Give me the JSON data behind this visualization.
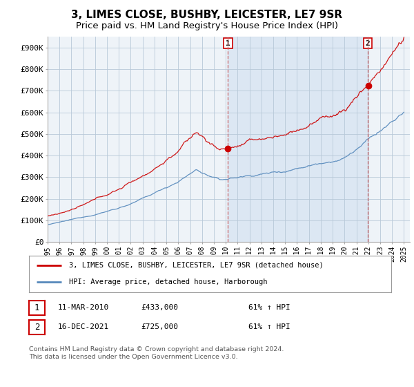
{
  "title": "3, LIMES CLOSE, BUSHBY, LEICESTER, LE7 9SR",
  "subtitle": "Price paid vs. HM Land Registry's House Price Index (HPI)",
  "ylim": [
    0,
    950000
  ],
  "yticks": [
    0,
    100000,
    200000,
    300000,
    400000,
    500000,
    600000,
    700000,
    800000,
    900000
  ],
  "ytick_labels": [
    "£0",
    "£100K",
    "£200K",
    "£300K",
    "£400K",
    "£500K",
    "£600K",
    "£700K",
    "£800K",
    "£900K"
  ],
  "background_color": "#ffffff",
  "grid_color": "#cccccc",
  "plot_bg_color": "#e8f0f8",
  "red_line_color": "#cc0000",
  "blue_line_color": "#5588bb",
  "shade_color": "#ddeeff",
  "marker1_year": 2010.19,
  "marker1_value": 433000,
  "marker2_year": 2021.96,
  "marker2_value": 725000,
  "dashed_line_color": "#cc6666",
  "legend_label1": "3, LIMES CLOSE, BUSHBY, LEICESTER, LE7 9SR (detached house)",
  "legend_label2": "HPI: Average price, detached house, Harborough",
  "note1_date": "11-MAR-2010",
  "note1_price": "£433,000",
  "note1_hpi": "61% ↑ HPI",
  "note2_date": "16-DEC-2021",
  "note2_price": "£725,000",
  "note2_hpi": "61% ↑ HPI",
  "footer": "Contains HM Land Registry data © Crown copyright and database right 2024.\nThis data is licensed under the Open Government Licence v3.0.",
  "title_fontsize": 11,
  "subtitle_fontsize": 9.5
}
